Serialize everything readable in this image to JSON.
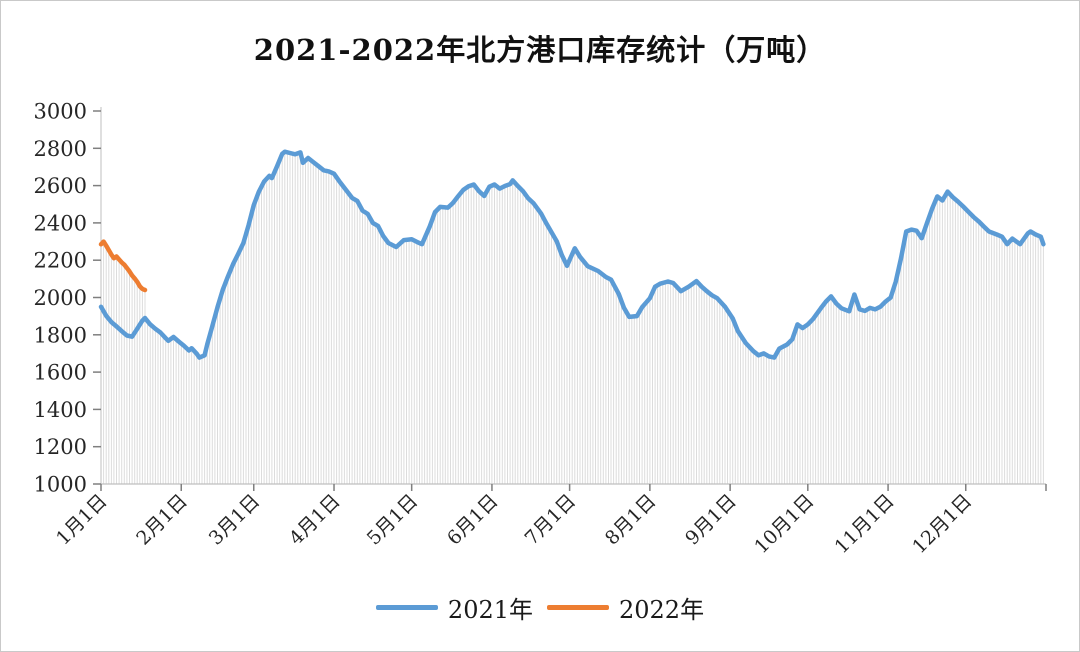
{
  "chart_data": {
    "type": "line",
    "title": "2021-2022年北方港口库存统计（万吨）",
    "xlabel": "",
    "ylabel": "",
    "ylim": [
      1000,
      3000
    ],
    "y_tick_step": 200,
    "grid": "no horizontal gridlines; thin vertical drop lines under curves for every daily point",
    "legend_position": "bottom-center",
    "x_axis": {
      "days_total": 365,
      "tick_labels": [
        "1月1日",
        "2月1日",
        "3月1日",
        "4月1日",
        "5月1日",
        "6月1日",
        "7月1日",
        "8月1日",
        "9月1日",
        "10月1日",
        "11月1日",
        "12月1日"
      ],
      "tick_days": [
        0,
        31,
        59,
        90,
        120,
        151,
        181,
        212,
        243,
        273,
        304,
        334
      ]
    },
    "series": [
      {
        "name": "2021年",
        "color": "#5B9BD5",
        "points_format": "[dayOfYear, value(万吨)]",
        "points": [
          [
            0,
            1950
          ],
          [
            2,
            1902
          ],
          [
            4,
            1868
          ],
          [
            6,
            1845
          ],
          [
            8,
            1820
          ],
          [
            10,
            1796
          ],
          [
            12,
            1790
          ],
          [
            14,
            1832
          ],
          [
            16,
            1876
          ],
          [
            17,
            1890
          ],
          [
            19,
            1856
          ],
          [
            21,
            1832
          ],
          [
            23,
            1812
          ],
          [
            25,
            1782
          ],
          [
            26,
            1768
          ],
          [
            28,
            1788
          ],
          [
            30,
            1764
          ],
          [
            32,
            1742
          ],
          [
            34,
            1716
          ],
          [
            35,
            1728
          ],
          [
            37,
            1698
          ],
          [
            38,
            1678
          ],
          [
            40,
            1690
          ],
          [
            41,
            1748
          ],
          [
            43,
            1846
          ],
          [
            45,
            1948
          ],
          [
            47,
            2040
          ],
          [
            49,
            2112
          ],
          [
            51,
            2178
          ],
          [
            53,
            2234
          ],
          [
            55,
            2292
          ],
          [
            57,
            2388
          ],
          [
            59,
            2496
          ],
          [
            61,
            2568
          ],
          [
            63,
            2622
          ],
          [
            65,
            2652
          ],
          [
            66,
            2640
          ],
          [
            68,
            2704
          ],
          [
            70,
            2770
          ],
          [
            71,
            2782
          ],
          [
            73,
            2775
          ],
          [
            75,
            2768
          ],
          [
            77,
            2778
          ],
          [
            78,
            2722
          ],
          [
            80,
            2748
          ],
          [
            82,
            2726
          ],
          [
            84,
            2704
          ],
          [
            86,
            2682
          ],
          [
            88,
            2676
          ],
          [
            90,
            2664
          ],
          [
            92,
            2624
          ],
          [
            95,
            2570
          ],
          [
            97,
            2534
          ],
          [
            99,
            2518
          ],
          [
            101,
            2466
          ],
          [
            103,
            2448
          ],
          [
            105,
            2400
          ],
          [
            107,
            2384
          ],
          [
            109,
            2330
          ],
          [
            111,
            2292
          ],
          [
            114,
            2271
          ],
          [
            117,
            2308
          ],
          [
            120,
            2312
          ],
          [
            122,
            2298
          ],
          [
            124,
            2286
          ],
          [
            127,
            2382
          ],
          [
            129,
            2458
          ],
          [
            131,
            2486
          ],
          [
            134,
            2482
          ],
          [
            136,
            2508
          ],
          [
            138,
            2544
          ],
          [
            140,
            2578
          ],
          [
            142,
            2596
          ],
          [
            144,
            2606
          ],
          [
            146,
            2570
          ],
          [
            148,
            2544
          ],
          [
            150,
            2594
          ],
          [
            152,
            2606
          ],
          [
            154,
            2584
          ],
          [
            156,
            2598
          ],
          [
            158,
            2608
          ],
          [
            159,
            2628
          ],
          [
            161,
            2598
          ],
          [
            163,
            2570
          ],
          [
            165,
            2532
          ],
          [
            167,
            2506
          ],
          [
            170,
            2450
          ],
          [
            172,
            2398
          ],
          [
            174,
            2350
          ],
          [
            176,
            2302
          ],
          [
            178,
            2228
          ],
          [
            180,
            2170
          ],
          [
            183,
            2264
          ],
          [
            185,
            2218
          ],
          [
            188,
            2168
          ],
          [
            192,
            2142
          ],
          [
            195,
            2110
          ],
          [
            197,
            2096
          ],
          [
            200,
            2018
          ],
          [
            202,
            1944
          ],
          [
            204,
            1896
          ],
          [
            207,
            1900
          ],
          [
            209,
            1948
          ],
          [
            212,
            1996
          ],
          [
            214,
            2058
          ],
          [
            216,
            2074
          ],
          [
            219,
            2086
          ],
          [
            221,
            2078
          ],
          [
            224,
            2034
          ],
          [
            227,
            2058
          ],
          [
            230,
            2088
          ],
          [
            232,
            2058
          ],
          [
            234,
            2034
          ],
          [
            236,
            2012
          ],
          [
            238,
            1996
          ],
          [
            241,
            1950
          ],
          [
            244,
            1888
          ],
          [
            246,
            1820
          ],
          [
            249,
            1756
          ],
          [
            252,
            1712
          ],
          [
            254,
            1690
          ],
          [
            256,
            1700
          ],
          [
            258,
            1684
          ],
          [
            260,
            1678
          ],
          [
            262,
            1726
          ],
          [
            265,
            1748
          ],
          [
            267,
            1776
          ],
          [
            269,
            1856
          ],
          [
            271,
            1836
          ],
          [
            273,
            1856
          ],
          [
            275,
            1884
          ],
          [
            278,
            1942
          ],
          [
            280,
            1978
          ],
          [
            282,
            2006
          ],
          [
            284,
            1968
          ],
          [
            286,
            1942
          ],
          [
            289,
            1926
          ],
          [
            291,
            2016
          ],
          [
            293,
            1936
          ],
          [
            295,
            1928
          ],
          [
            297,
            1944
          ],
          [
            299,
            1936
          ],
          [
            301,
            1950
          ],
          [
            303,
            1978
          ],
          [
            305,
            2000
          ],
          [
            307,
            2086
          ],
          [
            309,
            2210
          ],
          [
            311,
            2354
          ],
          [
            313,
            2364
          ],
          [
            315,
            2358
          ],
          [
            317,
            2318
          ],
          [
            319,
            2398
          ],
          [
            321,
            2476
          ],
          [
            323,
            2542
          ],
          [
            325,
            2520
          ],
          [
            327,
            2568
          ],
          [
            329,
            2538
          ],
          [
            331,
            2514
          ],
          [
            333,
            2488
          ],
          [
            335,
            2460
          ],
          [
            337,
            2432
          ],
          [
            339,
            2408
          ],
          [
            341,
            2380
          ],
          [
            343,
            2354
          ],
          [
            346,
            2338
          ],
          [
            348,
            2326
          ],
          [
            350,
            2286
          ],
          [
            352,
            2316
          ],
          [
            355,
            2286
          ],
          [
            358,
            2344
          ],
          [
            359,
            2354
          ],
          [
            361,
            2338
          ],
          [
            363,
            2326
          ],
          [
            364,
            2286
          ]
        ]
      },
      {
        "name": "2022年",
        "color": "#ED7D31",
        "points_format": "[dayOfYear, value(万吨)]",
        "points": [
          [
            0,
            2285
          ],
          [
            1,
            2300
          ],
          [
            2,
            2278
          ],
          [
            3,
            2254
          ],
          [
            4,
            2230
          ],
          [
            5,
            2210
          ],
          [
            6,
            2220
          ],
          [
            7,
            2204
          ],
          [
            8,
            2188
          ],
          [
            9,
            2176
          ],
          [
            10,
            2158
          ],
          [
            11,
            2140
          ],
          [
            12,
            2118
          ],
          [
            13,
            2102
          ],
          [
            14,
            2084
          ],
          [
            15,
            2060
          ],
          [
            16,
            2046
          ],
          [
            17,
            2040
          ]
        ]
      }
    ]
  },
  "legend": {
    "items": [
      {
        "label": "2021年",
        "color": "#5B9BD5"
      },
      {
        "label": "2022年",
        "color": "#ED7D31"
      }
    ]
  },
  "colors": {
    "background": "#ffffff",
    "frame_border": "#c9c9c9",
    "dropline": "#dcdcdc",
    "axis": "#bfbfbf",
    "tick": "#7f7f7f",
    "text": "#262626",
    "title_text": "#111111",
    "series_2021": "#5B9BD5",
    "series_2022": "#ED7D31"
  }
}
